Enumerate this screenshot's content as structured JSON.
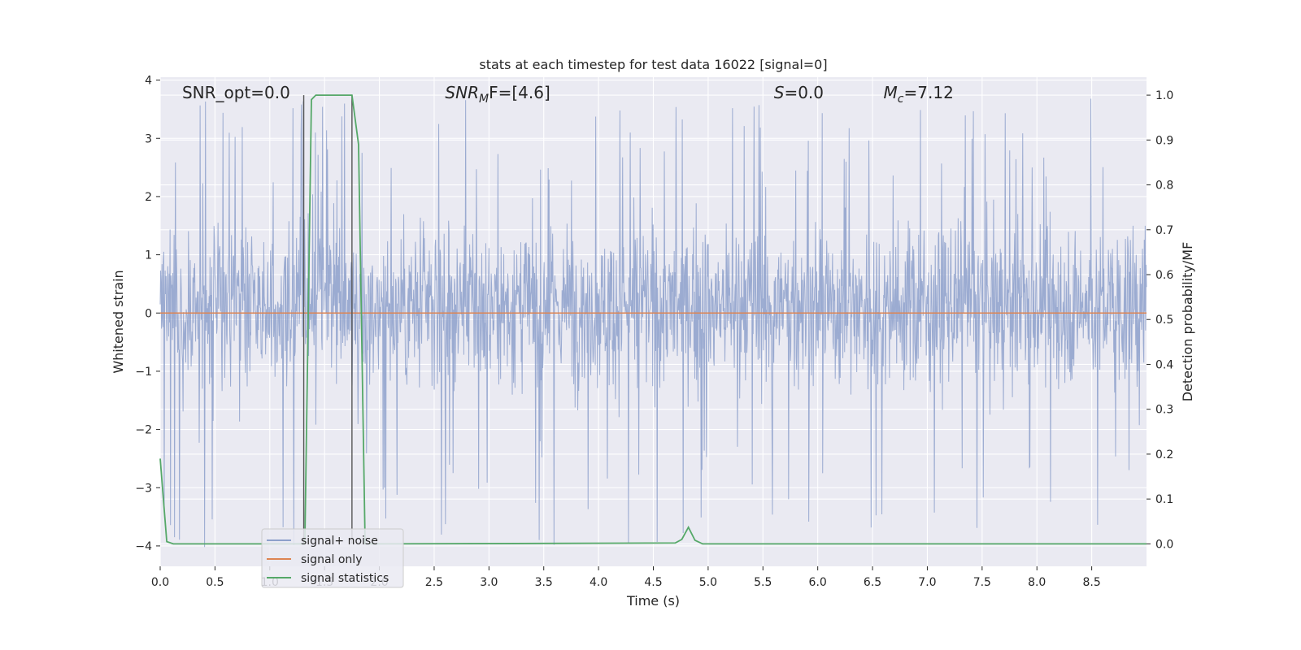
{
  "chart_data": {
    "type": "line",
    "title": "stats at each timestep for test data 16022 [signal=0]",
    "xlabel": "Time (s)",
    "ylabel_left": "Whitened strain",
    "ylabel_right": "Detection probability/MF",
    "xlim": [
      0.0,
      9.0
    ],
    "ylim_left": [
      -4.35,
      4.05
    ],
    "ylim_right": [
      -0.05,
      1.04
    ],
    "x_ticks": [
      "0.0",
      "0.5",
      "1.0",
      "1.5",
      "2.0",
      "2.5",
      "3.0",
      "3.5",
      "4.0",
      "4.5",
      "5.0",
      "5.5",
      "6.0",
      "6.5",
      "7.0",
      "7.5",
      "8.0",
      "8.5"
    ],
    "y_left_ticks": [
      "−4",
      "−3",
      "−2",
      "−1",
      "0",
      "1",
      "2",
      "3",
      "4"
    ],
    "y_right_ticks": [
      "0.0",
      "0.1",
      "0.2",
      "0.3",
      "0.4",
      "0.5",
      "0.6",
      "0.7",
      "0.8",
      "0.9",
      "1.0"
    ],
    "grid": true,
    "legend_position": "lower-left",
    "annotations": [
      {
        "text": "SNR_opt=0.0",
        "x": 0.2
      },
      {
        "text": "F=[4.6]",
        "prefix": "SNR",
        "sub": "M",
        "x": 2.6
      },
      {
        "text": "=0.0",
        "prefix": "S",
        "x": 5.6
      },
      {
        "text": "=7.12",
        "prefix": "M",
        "sub": "c",
        "x": 6.6
      }
    ],
    "series": [
      {
        "name": "signal+ noise",
        "color": "#8da0cb",
        "style": "noise",
        "envelope_approx": {
          "core_low": -1.8,
          "core_high": 2.1,
          "spike_max": 3.7,
          "spike_min": -4.05
        }
      },
      {
        "name": "signal only",
        "color": "#dd8452",
        "x": [
          0.0,
          9.0
        ],
        "values": [
          0.0,
          0.0
        ]
      },
      {
        "name": "signal statistics",
        "color": "#55a868",
        "axis": "right",
        "x": [
          0.0,
          0.06,
          0.12,
          1.32,
          1.38,
          1.42,
          1.5,
          1.6,
          1.7,
          1.75,
          1.81,
          1.87,
          1.92,
          3.5,
          4.7,
          4.76,
          4.82,
          4.88,
          4.95,
          9.0
        ],
        "values": [
          0.19,
          0.005,
          0.0,
          0.0,
          0.99,
          1.0,
          1.0,
          1.0,
          1.0,
          1.0,
          0.89,
          0.0,
          0.0,
          0.001,
          0.002,
          0.01,
          0.037,
          0.008,
          0.0,
          0.0
        ]
      }
    ],
    "vertical_markers": [
      {
        "x": 1.31,
        "color": "#555555"
      },
      {
        "x": 1.75,
        "color": "#555555"
      }
    ],
    "colors": {
      "background": "#eaeaf2",
      "grid": "#ffffff",
      "text": "#262626"
    }
  }
}
